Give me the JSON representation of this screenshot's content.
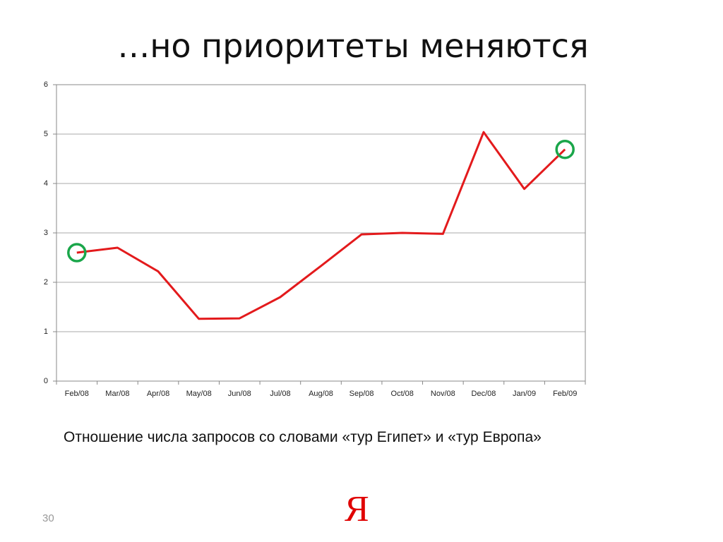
{
  "title": "…но приоритеты меняются",
  "chart_data": {
    "type": "line",
    "categories": [
      "Feb/08",
      "Mar/08",
      "Apr/08",
      "May/08",
      "Jun/08",
      "Jul/08",
      "Aug/08",
      "Sep/08",
      "Oct/08",
      "Nov/08",
      "Dec/08",
      "Jan/09",
      "Feb/09"
    ],
    "values": [
      2.6,
      2.7,
      2.22,
      1.26,
      1.27,
      1.7,
      2.33,
      2.97,
      3.0,
      2.98,
      5.04,
      3.89,
      4.69
    ],
    "color": "#e31a1c",
    "highlight": {
      "indices": [
        0,
        12
      ],
      "color": "#1aa64a"
    },
    "ylim": [
      0,
      6
    ],
    "yticks": [
      0,
      1,
      2,
      3,
      4,
      5,
      6
    ],
    "grid": true
  },
  "caption": "Отношение числа запросов со словами «тур Египет» и «тур Европа»",
  "page_number": "30",
  "logo": "Я"
}
